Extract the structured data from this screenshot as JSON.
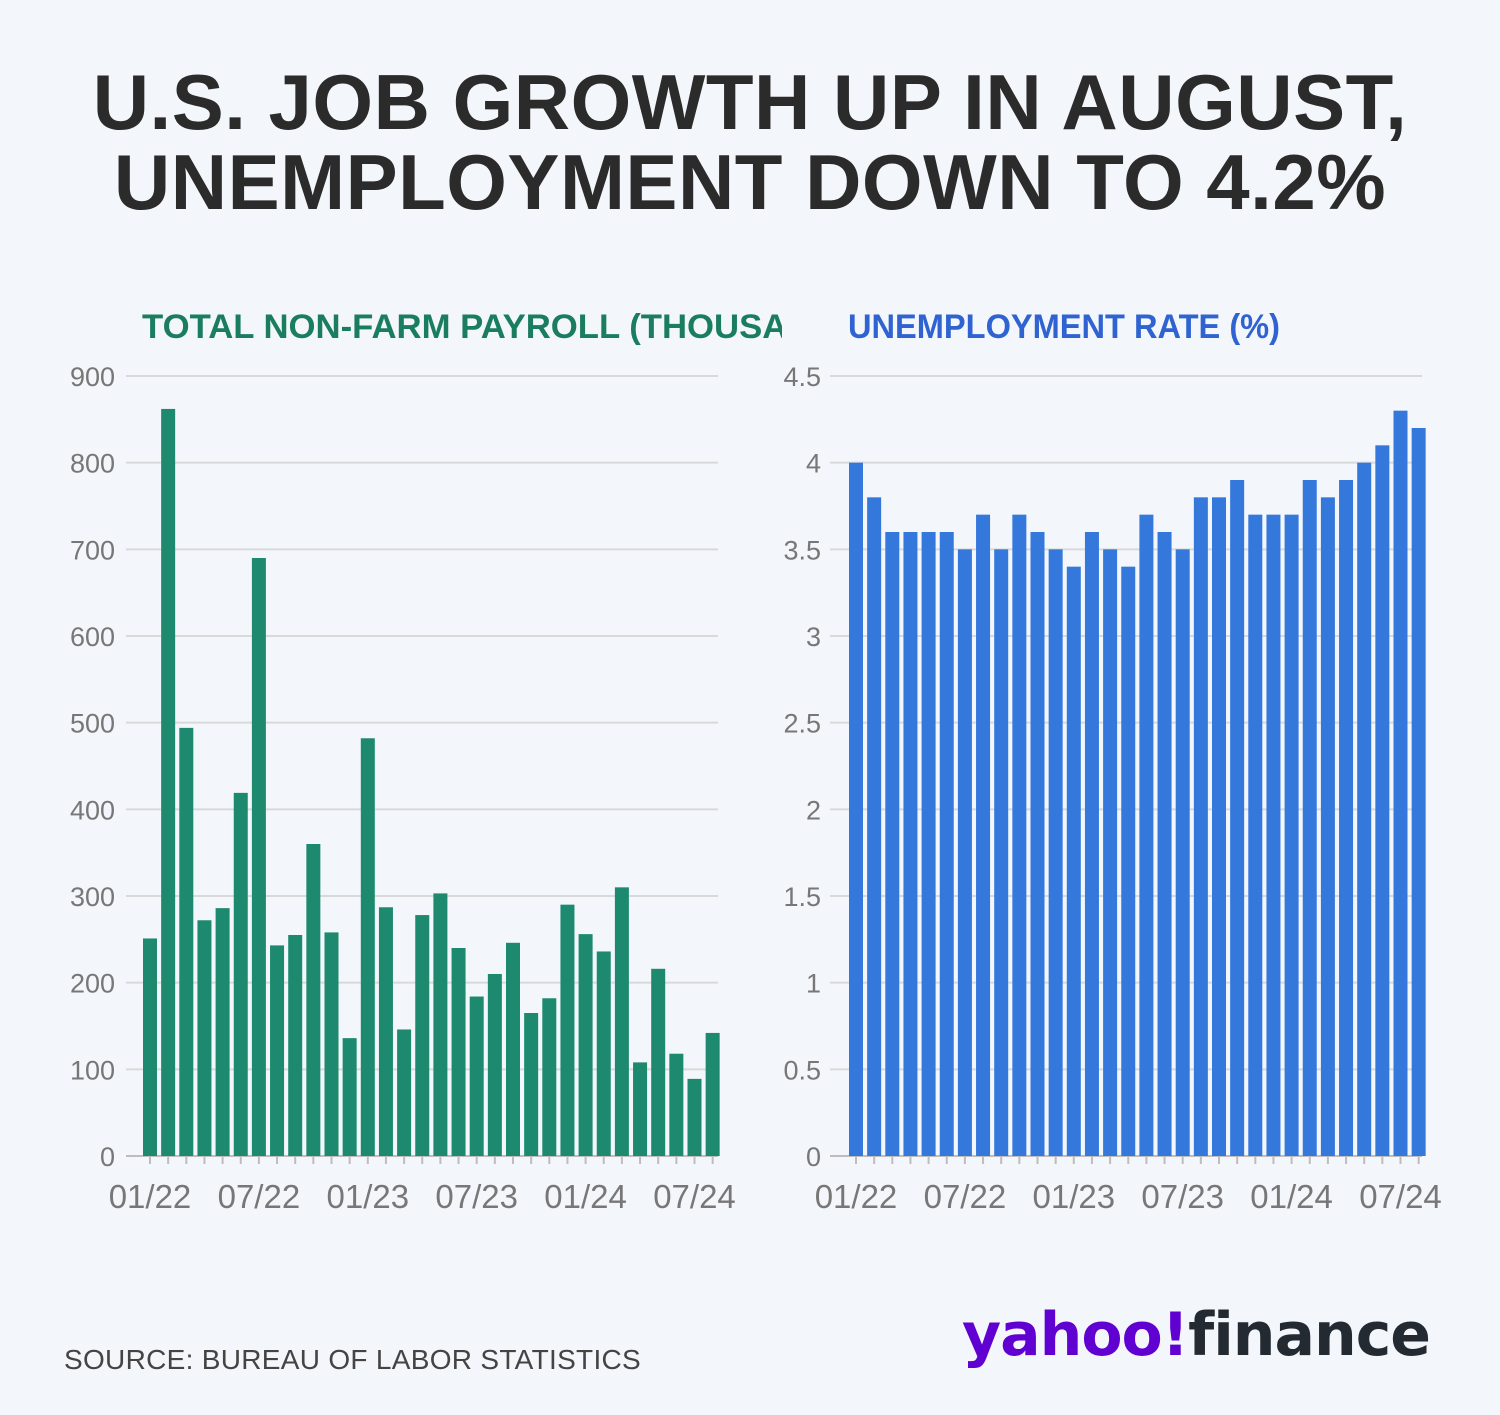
{
  "headline": {
    "line1": "U.S. JOB GROWTH UP IN AUGUST,",
    "line2": "UNEMPLOYMENT DOWN TO 4.2%"
  },
  "source": "SOURCE: BUREAU OF LABOR STATISTICS",
  "logo": {
    "brand": "yahoo!",
    "product": "finance"
  },
  "colors": {
    "payroll": "#1d8a70",
    "payroll_title": "#1b7d5f",
    "unemployment": "#3478dc",
    "unemployment_title": "#2f63d1",
    "grid": "#d9d9d9",
    "tick": "#777777"
  },
  "chart_data": [
    {
      "type": "bar",
      "title": "TOTAL NON-FARM PAYROLL (THOUSANDS)",
      "title_display": "TOTAL NON-FARM PAYROLL (THOUSANI",
      "xlabel": "",
      "ylabel": "",
      "ylim": [
        0,
        900
      ],
      "yticks": [
        "0",
        "100",
        "200",
        "300",
        "400",
        "500",
        "600",
        "700",
        "800",
        "900"
      ],
      "ytick_values": [
        0,
        100,
        200,
        300,
        400,
        500,
        600,
        700,
        800,
        900
      ],
      "xtick_labels": [
        "01/22",
        "07/22",
        "01/23",
        "07/23",
        "01/24",
        "07/24"
      ],
      "xtick_indices": [
        0,
        6,
        12,
        18,
        24,
        30
      ],
      "categories": [
        "01/22",
        "02/22",
        "03/22",
        "04/22",
        "05/22",
        "06/22",
        "07/22",
        "08/22",
        "09/22",
        "10/22",
        "11/22",
        "12/22",
        "01/23",
        "02/23",
        "03/23",
        "04/23",
        "05/23",
        "06/23",
        "07/23",
        "08/23",
        "09/23",
        "10/23",
        "11/23",
        "12/23",
        "01/24",
        "02/24",
        "03/24",
        "04/24",
        "05/24",
        "06/24",
        "07/24",
        "08/24"
      ],
      "values": [
        251,
        862,
        494,
        272,
        286,
        419,
        690,
        243,
        255,
        360,
        258,
        136,
        482,
        287,
        146,
        278,
        303,
        240,
        184,
        210,
        246,
        165,
        182,
        290,
        256,
        236,
        310,
        108,
        216,
        118,
        89,
        142
      ],
      "grid": true
    },
    {
      "type": "bar",
      "title": "UNEMPLOYMENT RATE (%)",
      "xlabel": "",
      "ylabel": "",
      "ylim": [
        0,
        4.5
      ],
      "yticks": [
        "0",
        "0.5",
        "1",
        "1.5",
        "2",
        "2.5",
        "3",
        "3.5",
        "4",
        "4.5"
      ],
      "ytick_values": [
        0,
        0.5,
        1,
        1.5,
        2,
        2.5,
        3,
        3.5,
        4,
        4.5
      ],
      "xtick_labels": [
        "01/22",
        "07/22",
        "01/23",
        "07/23",
        "01/24",
        "07/24"
      ],
      "xtick_indices": [
        0,
        6,
        12,
        18,
        24,
        30
      ],
      "categories": [
        "01/22",
        "02/22",
        "03/22",
        "04/22",
        "05/22",
        "06/22",
        "07/22",
        "08/22",
        "09/22",
        "10/22",
        "11/22",
        "12/22",
        "01/23",
        "02/23",
        "03/23",
        "04/23",
        "05/23",
        "06/23",
        "07/23",
        "08/23",
        "09/23",
        "10/23",
        "11/23",
        "12/23",
        "01/24",
        "02/24",
        "03/24",
        "04/24",
        "05/24",
        "06/24",
        "07/24",
        "08/24"
      ],
      "values": [
        4.0,
        3.8,
        3.6,
        3.6,
        3.6,
        3.6,
        3.5,
        3.7,
        3.5,
        3.7,
        3.6,
        3.5,
        3.4,
        3.6,
        3.5,
        3.4,
        3.7,
        3.6,
        3.5,
        3.8,
        3.8,
        3.9,
        3.7,
        3.7,
        3.7,
        3.9,
        3.8,
        3.9,
        4.0,
        4.1,
        4.3,
        4.2
      ],
      "grid": true
    }
  ]
}
